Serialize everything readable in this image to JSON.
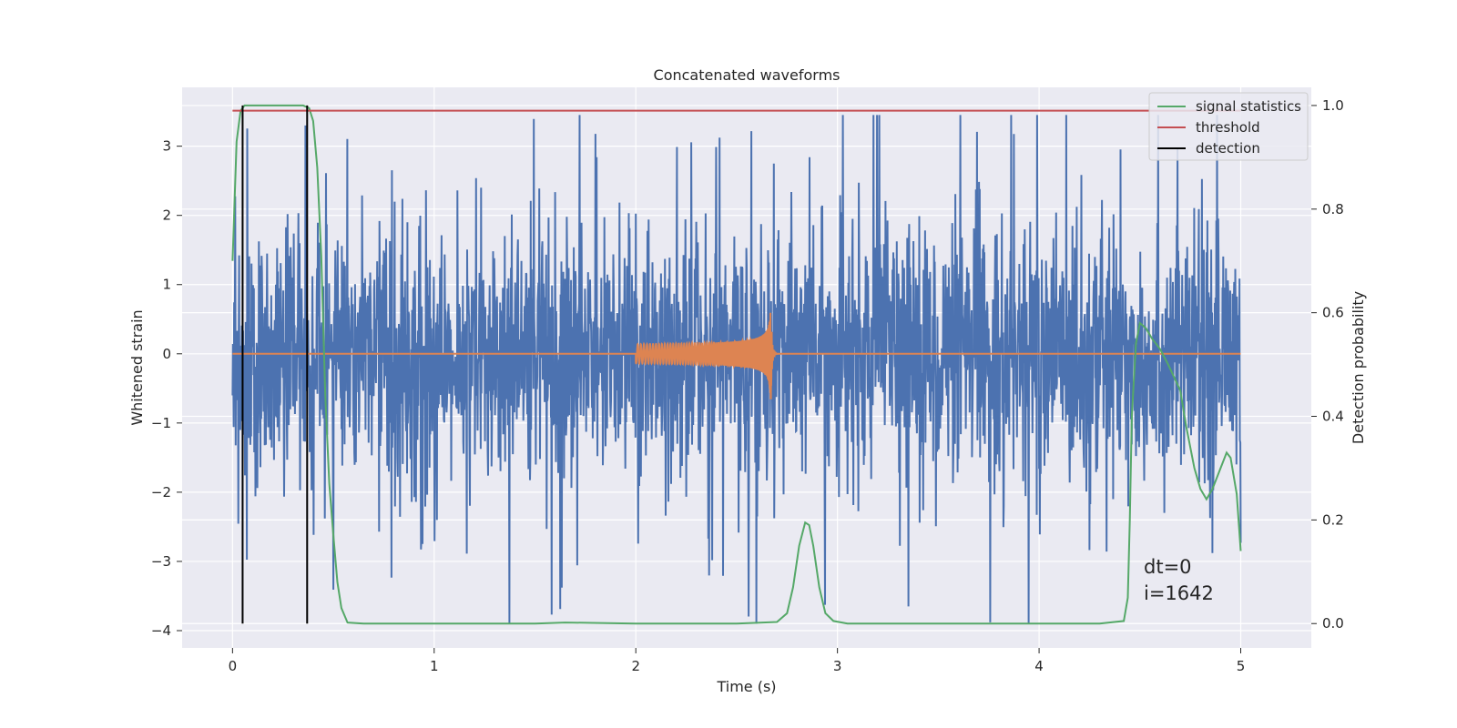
{
  "chart_data": {
    "type": "line",
    "title": "Concatenated waveforms",
    "xlabel": "Time (s)",
    "ylabel": "Whitened strain",
    "y2label": "Detection probability",
    "xlim": [
      -0.25,
      5.35
    ],
    "ylim": [
      -4.25,
      3.85
    ],
    "y2lim": [
      -0.047,
      1.035
    ],
    "xticks": [
      0,
      1,
      2,
      3,
      4,
      5
    ],
    "yticks": [
      -4,
      -3,
      -2,
      -1,
      0,
      1,
      2,
      3
    ],
    "y2ticks": [
      0.0,
      0.2,
      0.4,
      0.6,
      0.8,
      1.0
    ],
    "xtick_labels": [
      "0",
      "1",
      "2",
      "3",
      "4",
      "5"
    ],
    "ytick_labels": [
      "−4",
      "−3",
      "−2",
      "−1",
      "0",
      "1",
      "2",
      "3"
    ],
    "y2tick_labels": [
      "0.0",
      "0.2",
      "0.4",
      "0.6",
      "0.8",
      "1.0"
    ],
    "grid": true,
    "legend_position": "top-right",
    "colors": {
      "strain": "#4c72b0",
      "template": "#dd8452",
      "signal_statistics": "#55a868",
      "threshold": "#c44e52",
      "detection": "#000000",
      "background": "#eaeaf2",
      "grid": "#ffffff"
    },
    "strain": {
      "x_range": [
        0,
        5
      ],
      "typical_range": [
        -1.0,
        1.0
      ],
      "peak_range": [
        -3.9,
        3.45
      ]
    },
    "template_waveform": {
      "x_range": [
        2.0,
        2.67
      ],
      "amplitude_start": 0.1,
      "amplitude_peak": 0.75,
      "merger_time": 2.67
    },
    "legend": [
      {
        "label": "signal statistics",
        "color": "#55a868"
      },
      {
        "label": "threshold",
        "color": "#c44e52"
      },
      {
        "label": "detection",
        "color": "#000000"
      }
    ],
    "series": [
      {
        "name": "signal statistics",
        "axis": "right",
        "x": [
          0.0,
          0.02,
          0.04,
          0.06,
          0.08,
          0.1,
          0.15,
          0.2,
          0.25,
          0.3,
          0.35,
          0.38,
          0.4,
          0.42,
          0.44,
          0.46,
          0.48,
          0.5,
          0.52,
          0.54,
          0.57,
          0.65,
          1.0,
          1.5,
          1.65,
          2.0,
          2.5,
          2.7,
          2.75,
          2.78,
          2.81,
          2.84,
          2.86,
          2.88,
          2.91,
          2.94,
          2.98,
          3.05,
          3.15,
          3.5,
          4.0,
          4.3,
          4.42,
          4.44,
          4.45,
          4.46,
          4.48,
          4.5,
          4.53,
          4.56,
          4.6,
          4.64,
          4.7,
          4.73,
          4.77,
          4.8,
          4.83,
          4.86,
          4.9,
          4.93,
          4.95,
          4.98,
          5.0
        ],
        "y": [
          0.7,
          0.93,
          0.99,
          1.0,
          1.0,
          1.0,
          1.0,
          1.0,
          1.0,
          1.0,
          1.0,
          0.995,
          0.97,
          0.88,
          0.71,
          0.44,
          0.27,
          0.17,
          0.08,
          0.03,
          0.002,
          0.0,
          0.0,
          0.0,
          0.002,
          0.0,
          0.0,
          0.003,
          0.02,
          0.07,
          0.15,
          0.195,
          0.19,
          0.15,
          0.07,
          0.02,
          0.005,
          0.0,
          0.0,
          0.0,
          0.0,
          0.0,
          0.005,
          0.05,
          0.2,
          0.4,
          0.54,
          0.58,
          0.57,
          0.55,
          0.53,
          0.5,
          0.45,
          0.38,
          0.3,
          0.26,
          0.24,
          0.26,
          0.3,
          0.33,
          0.32,
          0.25,
          0.14
        ]
      },
      {
        "name": "threshold",
        "axis": "right",
        "x": [
          0,
          5
        ],
        "y": [
          0.99,
          0.99
        ]
      },
      {
        "name": "detection",
        "axis": "right",
        "x": [
          0.05,
          0.37
        ],
        "y": [
          1.0,
          1.0
        ]
      }
    ],
    "annotations": [
      "dt=0",
      "i=1642"
    ]
  }
}
